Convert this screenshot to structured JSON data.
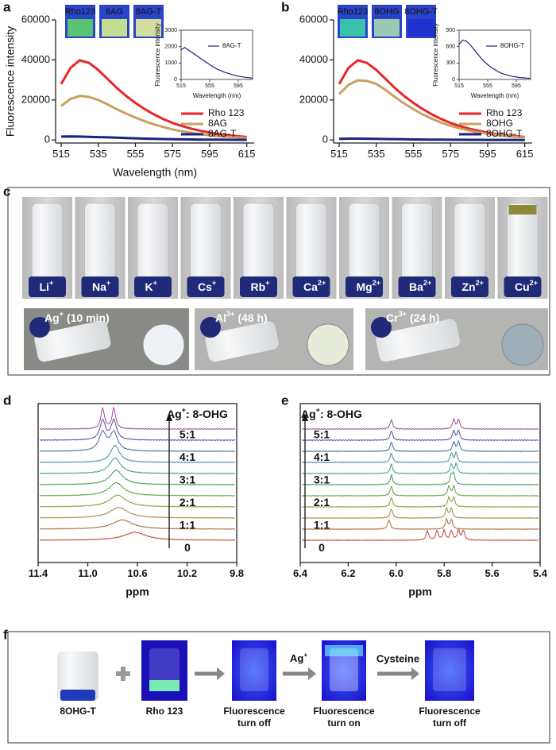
{
  "panel_labels": [
    "a",
    "b",
    "c",
    "d",
    "e",
    "f"
  ],
  "chart_data": [
    {
      "type": "line",
      "xlabel": "Wavelength (nm)",
      "ylabel": "Fluorescence intensity",
      "photo_labels": [
        "Rho123",
        "8AG",
        "8AG-T"
      ],
      "x": [
        515,
        520,
        525,
        530,
        535,
        540,
        545,
        550,
        555,
        560,
        565,
        570,
        575,
        580,
        585,
        590,
        595,
        600,
        605,
        610,
        615
      ],
      "xlim": [
        512,
        619
      ],
      "xticks": [
        515,
        535,
        555,
        575,
        595,
        615
      ],
      "ylim": [
        -1500,
        60000
      ],
      "yticks": [
        0,
        20000,
        40000,
        60000
      ],
      "legend": "lower right",
      "series": [
        {
          "name": "Rho 123",
          "color": "#e8262a",
          "values": [
            28000,
            36000,
            39800,
            38500,
            35000,
            30500,
            26000,
            22000,
            18500,
            15500,
            12800,
            10500,
            8500,
            7000,
            5700,
            4600,
            3700,
            3000,
            2400,
            1900,
            1500
          ]
        },
        {
          "name": "8AG",
          "color": "#c9a060",
          "values": [
            17000,
            20500,
            22000,
            21500,
            20000,
            17800,
            15400,
            13200,
            11200,
            9400,
            7800,
            6500,
            5300,
            4400,
            3600,
            2900,
            2400,
            1900,
            1600,
            1300,
            1000
          ]
        },
        {
          "name": "8AG-T",
          "color": "#1a237e",
          "values": [
            1700,
            1800,
            1700,
            1600,
            1450,
            1300,
            1150,
            1000,
            850,
            700,
            600,
            500,
            400,
            330,
            270,
            220,
            180,
            150,
            120,
            100,
            80
          ]
        }
      ]
    },
    {
      "type": "line",
      "xlabel": "Wavelength (nm)",
      "ylabel": "Fluorescence intensity",
      "x": [
        515,
        520,
        525,
        530,
        535,
        540,
        545,
        550,
        555,
        560,
        565,
        570,
        575,
        580,
        585,
        590,
        595,
        600,
        605,
        610,
        615
      ],
      "xlim": [
        515,
        615
      ],
      "xticks": [
        515,
        555,
        595
      ],
      "ylim": [
        0,
        3000
      ],
      "yticks": [
        0,
        1000,
        2000,
        3000
      ],
      "legend": "upper right",
      "series": [
        {
          "name": "8AG-T",
          "color": "#1a237e",
          "values": [
            1800,
            1950,
            1800,
            1650,
            1500,
            1350,
            1200,
            1050,
            900,
            760,
            640,
            540,
            450,
            380,
            310,
            250,
            200,
            160,
            130,
            100,
            80
          ]
        }
      ]
    },
    {
      "type": "line",
      "photo_labels": [
        "Rho123",
        "8OHG",
        "8OHG-T"
      ],
      "x": [
        515,
        520,
        525,
        530,
        535,
        540,
        545,
        550,
        555,
        560,
        565,
        570,
        575,
        580,
        585,
        590,
        595,
        600,
        605,
        610,
        615
      ],
      "xlim": [
        512,
        619
      ],
      "xticks": [
        515,
        535,
        555,
        575,
        595,
        615
      ],
      "ylim": [
        -1500,
        60000
      ],
      "yticks": [
        0,
        20000,
        40000,
        60000
      ],
      "legend": "lower right",
      "series": [
        {
          "name": "Rho 123",
          "color": "#e8262a",
          "values": [
            28000,
            36000,
            39800,
            38500,
            35000,
            30500,
            26000,
            22000,
            18500,
            15500,
            12800,
            10500,
            8500,
            7000,
            5700,
            4600,
            3700,
            3000,
            2400,
            1900,
            1500
          ]
        },
        {
          "name": "8OHG",
          "color": "#c9a060",
          "values": [
            23000,
            27500,
            29800,
            29500,
            28000,
            25000,
            21500,
            18300,
            15400,
            12800,
            10600,
            8700,
            7100,
            5800,
            4700,
            3800,
            3100,
            2500,
            2000,
            1600,
            1300
          ]
        },
        {
          "name": "8OHG-T",
          "color": "#1a237e",
          "values": [
            600,
            700,
            700,
            650,
            580,
            500,
            430,
            360,
            300,
            250,
            200,
            170,
            140,
            110,
            90,
            70,
            60,
            50,
            40,
            30,
            25
          ]
        }
      ]
    },
    {
      "type": "line",
      "xlabel": "Wavelength (nm)",
      "ylabel": "Fluorescence intensity",
      "x": [
        515,
        520,
        525,
        530,
        535,
        540,
        545,
        550,
        555,
        560,
        565,
        570,
        575,
        580,
        585,
        590,
        595,
        600,
        605,
        610,
        615
      ],
      "xlim": [
        515,
        615
      ],
      "xticks": [
        515,
        555,
        595
      ],
      "ylim": [
        0,
        900
      ],
      "yticks": [
        0,
        300,
        600,
        900
      ],
      "legend": "upper right",
      "series": [
        {
          "name": "8OHG-T",
          "color": "#1a237e",
          "values": [
            640,
            720,
            700,
            640,
            560,
            480,
            400,
            330,
            270,
            220,
            180,
            140,
            110,
            90,
            70,
            55,
            45,
            35,
            30,
            25,
            20
          ]
        }
      ]
    },
    {
      "type": "spectrum",
      "xlabel": "ppm",
      "xlim": [
        11.4,
        9.8
      ],
      "xticks": [
        11.4,
        {
          "value": 11,
          "label": "11.0"
        },
        10.6,
        10.2,
        9.8
      ],
      "ratio_title": {
        "symbol": "Ag",
        "charge": "+",
        "rest": ": 8-OHG"
      },
      "ratios": [
        "5:1",
        "4:1",
        "3:1",
        "2:1",
        "1:1",
        "0"
      ],
      "series": [
        {
          "color": "#b5453b",
          "values": [
            10.62
          ]
        },
        {
          "color": "#a86a3a",
          "values": [
            10.72
          ]
        },
        {
          "color": "#a0883a",
          "values": [
            10.75
          ]
        },
        {
          "color": "#8a9a3a",
          "values": [
            10.76
          ]
        },
        {
          "color": "#5aa03a",
          "values": [
            10.77
          ]
        },
        {
          "color": "#3a9a5a",
          "values": [
            10.77
          ]
        },
        {
          "color": "#3a9a8a",
          "values": [
            10.78
          ]
        },
        {
          "color": "#3a8aa0",
          "values": [
            10.78
          ]
        },
        {
          "color": "#3a6aa0",
          "values": [
            10.79,
            10.88
          ]
        },
        {
          "color": "#5a4aa0",
          "values": [
            10.79,
            10.88
          ]
        },
        {
          "color": "#9a4a9a",
          "values": [
            10.79,
            10.88
          ]
        }
      ]
    },
    {
      "type": "spectrum",
      "xlabel": "ppm",
      "xlim": [
        6.4,
        5.4
      ],
      "xticks": [
        6.4,
        6.2,
        {
          "value": 6,
          "label": "6.0"
        },
        5.8,
        5.6,
        5.4
      ],
      "ratio_title": {
        "symbol": "Ag",
        "charge": "+",
        "rest": ": 8-OHG"
      },
      "ratios": [
        "5:1",
        "4:1",
        "3:1",
        "2:1",
        "1:1",
        "0"
      ],
      "series": [
        {
          "color": "#b5453b",
          "values": [
            5.87,
            5.83,
            5.8,
            5.77,
            5.74,
            5.72
          ]
        },
        {
          "color": "#a86a3a",
          "values": [
            6.03,
            5.79,
            5.77
          ]
        },
        {
          "color": "#a0883a",
          "values": [
            6.02,
            5.79,
            5.77
          ]
        },
        {
          "color": "#8a9a3a",
          "values": [
            6.02,
            5.78,
            5.76
          ]
        },
        {
          "color": "#5aa03a",
          "values": [
            6.02,
            5.78,
            5.76
          ]
        },
        {
          "color": "#3a9a5a",
          "values": [
            6.02,
            5.77,
            5.76
          ]
        },
        {
          "color": "#3a9a8a",
          "values": [
            6.02,
            5.77,
            5.75
          ]
        },
        {
          "color": "#3a8aa0",
          "values": [
            6.02,
            5.77,
            5.75
          ]
        },
        {
          "color": "#3a6aa0",
          "values": [
            6.02,
            5.76,
            5.74
          ]
        },
        {
          "color": "#5a4aa0",
          "values": [
            6.02,
            5.76,
            5.74
          ]
        },
        {
          "color": "#9a4a9a",
          "values": [
            6.02,
            5.76,
            5.74
          ]
        }
      ]
    }
  ],
  "panel_c": {
    "ions": [
      {
        "symbol": "Li",
        "charge": "+"
      },
      {
        "symbol": "Na",
        "charge": "+"
      },
      {
        "symbol": "K",
        "charge": "+"
      },
      {
        "symbol": "Cs",
        "charge": "+"
      },
      {
        "symbol": "Rb",
        "charge": "+"
      },
      {
        "symbol": "Ca",
        "charge": "2+"
      },
      {
        "symbol": "Mg",
        "charge": "2+"
      },
      {
        "symbol": "Ba",
        "charge": "2+"
      },
      {
        "symbol": "Zn",
        "charge": "2+"
      },
      {
        "symbol": "Cu",
        "charge": "2+"
      }
    ],
    "treatments": [
      {
        "symbol": "Ag",
        "charge": "+",
        "time": "(10 min)"
      },
      {
        "symbol": "Al",
        "charge": "3+",
        "time": "(48 h)"
      },
      {
        "symbol": "Cr",
        "charge": "3+",
        "time": "(24 h)"
      }
    ]
  },
  "panel_f": {
    "captions": [
      [
        "8OHG-T"
      ],
      [
        "Rho 123"
      ],
      [
        "Fluorescence",
        "turn off"
      ],
      [
        "Fluorescence",
        "turn on"
      ],
      [
        "Fluorescence",
        "turn off"
      ]
    ],
    "reagent_1": {
      "symbol": "Ag",
      "charge": "+"
    },
    "reagent_2": "Cysteine"
  }
}
